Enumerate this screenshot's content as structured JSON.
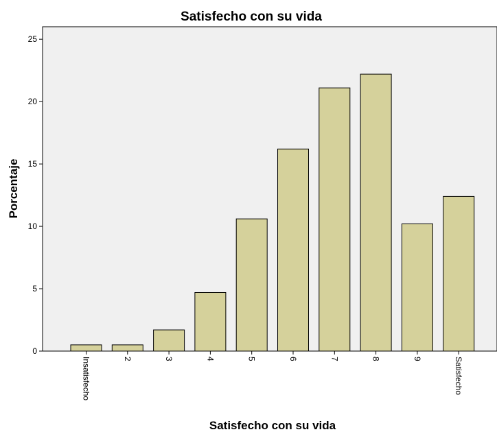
{
  "chart_data": {
    "type": "bar",
    "title": "Satisfecho con su vida",
    "xlabel": "Satisfecho con su vida",
    "ylabel": "Porcentaje",
    "categories": [
      "Insatisfecho",
      "2",
      "3",
      "4",
      "5",
      "6",
      "7",
      "8",
      "9",
      "Satisfecho"
    ],
    "values": [
      0.5,
      0.5,
      1.7,
      4.7,
      10.6,
      16.2,
      21.1,
      22.2,
      10.2,
      12.4
    ],
    "ylim": [
      0,
      26
    ],
    "yticks": [
      0,
      5,
      10,
      15,
      20,
      25
    ],
    "grid": false,
    "legend": "none",
    "colors": {
      "bar_fill": "#d5d19b",
      "bar_stroke": "#000000",
      "plot_background": "#f0f0f0"
    }
  }
}
